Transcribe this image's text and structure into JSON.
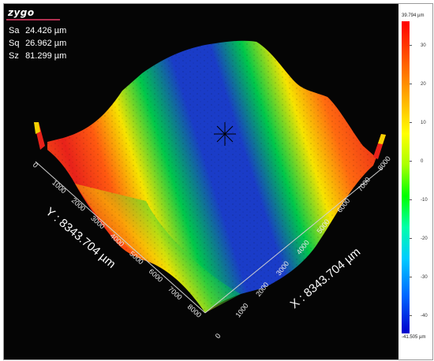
{
  "brand": {
    "logo_text": "zygo"
  },
  "stats": [
    {
      "name": "Sa",
      "value": "24.426 µm"
    },
    {
      "name": "Sq",
      "value": "26.962 µm"
    },
    {
      "name": "Sz",
      "value": "81.299 µm"
    }
  ],
  "axes": {
    "y_title": "Y : 8343.704 µm",
    "x_title": "X : 8343.704 µm",
    "y_ticks": [
      "0",
      "1000",
      "2000",
      "3000",
      "4000",
      "5000",
      "6000",
      "7000",
      "8000"
    ],
    "x_ticks": [
      "0",
      "1000",
      "2000",
      "3000",
      "4000",
      "5000",
      "6000",
      "7000",
      "8000"
    ]
  },
  "colorbar": {
    "max_label": "39.794 µm",
    "min_label": "-41.505 µm",
    "ticks": [
      "30",
      "20",
      "10",
      "0",
      "-10",
      "-20",
      "-30",
      "-40"
    ],
    "colors": [
      "#ff0000",
      "#ffaa00",
      "#ffff00",
      "#00ff00",
      "#00ccff",
      "#0000cc"
    ]
  },
  "colors": {
    "background": "#050505",
    "band_red": "#e8221a",
    "band_green": "#00c84a",
    "band_blue": "#1a3cc8",
    "band_yellow": "#f6e400"
  }
}
